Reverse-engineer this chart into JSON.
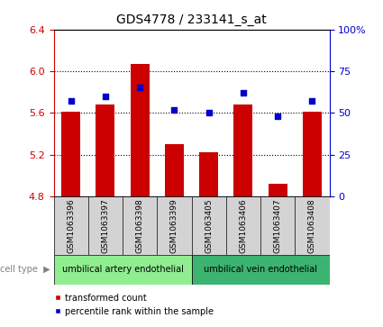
{
  "title": "GDS4778 / 233141_s_at",
  "samples": [
    "GSM1063396",
    "GSM1063397",
    "GSM1063398",
    "GSM1063399",
    "GSM1063405",
    "GSM1063406",
    "GSM1063407",
    "GSM1063408"
  ],
  "transformed_counts": [
    5.61,
    5.68,
    6.07,
    5.3,
    5.22,
    5.68,
    4.92,
    5.61
  ],
  "percentile_ranks": [
    57,
    60,
    65,
    52,
    50,
    62,
    48,
    57
  ],
  "ylim_left": [
    4.8,
    6.4
  ],
  "yticks_left": [
    4.8,
    5.2,
    5.6,
    6.0,
    6.4
  ],
  "ylim_right": [
    0,
    100
  ],
  "yticks_right": [
    0,
    25,
    50,
    75,
    100
  ],
  "ytick_labels_right": [
    "0",
    "25",
    "50",
    "75",
    "100%"
  ],
  "bar_color": "#cc0000",
  "dot_color": "#0000cc",
  "bar_bottom": 4.8,
  "cell_type_colors": [
    "#90ee90",
    "#3cb371"
  ],
  "cell_type_labels": [
    "umbilical artery endothelial",
    "umbilical vein endothelial"
  ],
  "cell_type_label": "cell type",
  "legend_items": [
    {
      "color": "#cc0000",
      "label": "transformed count"
    },
    {
      "color": "#0000cc",
      "label": "percentile rank within the sample"
    }
  ],
  "background_color": "#ffffff",
  "tick_label_color_left": "#cc0000",
  "tick_label_color_right": "#0000cc",
  "sample_box_color": "#d3d3d3",
  "grid_yticks": [
    5.2,
    5.6,
    6.0
  ]
}
